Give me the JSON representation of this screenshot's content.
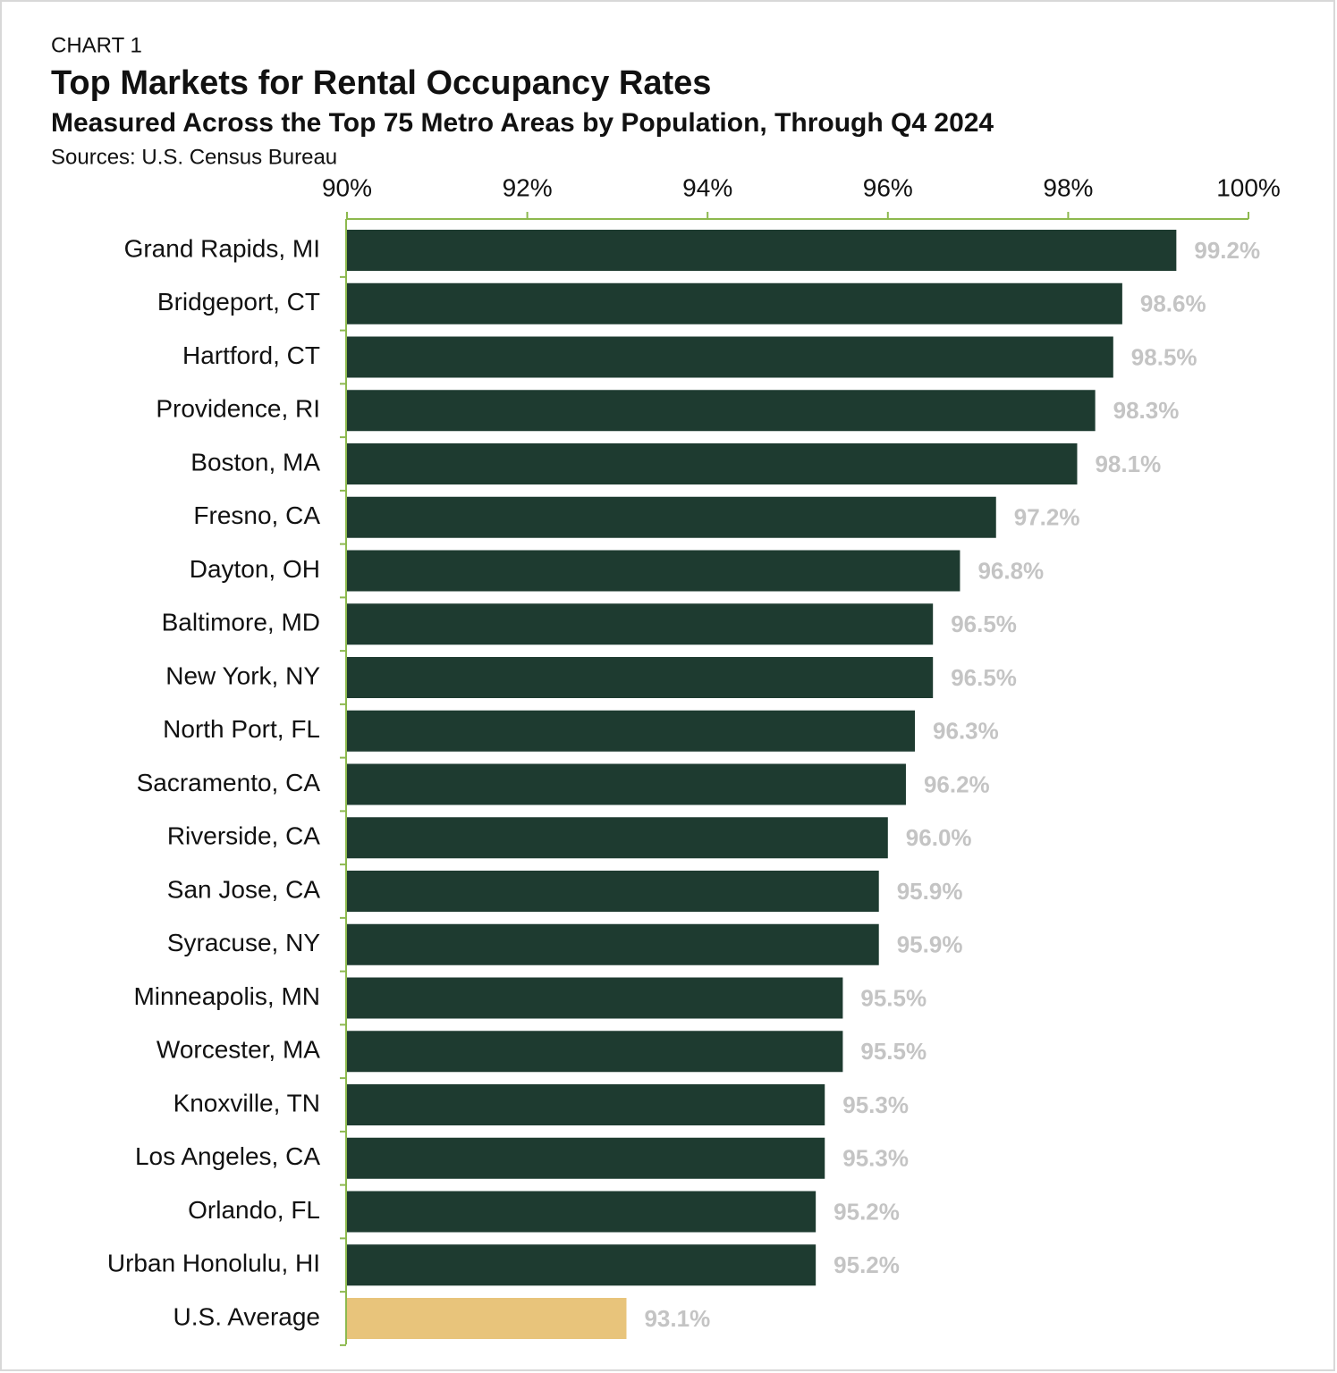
{
  "chart_data": {
    "type": "hbar",
    "chart_label": "CHART 1",
    "title": "Top Markets for Rental Occupancy Rates",
    "subtitle": "Measured Across the Top 75 Metro Areas by Population, Through Q4 2024",
    "source": "Sources: U.S. Census Bureau",
    "categories": [
      "Grand Rapids, MI",
      "Bridgeport, CT",
      "Hartford, CT",
      "Providence, RI",
      "Boston, MA",
      "Fresno, CA",
      "Dayton, OH",
      "Baltimore, MD",
      "New York, NY",
      "North Port, FL",
      "Sacramento, CA",
      "Riverside, CA",
      "San Jose, CA",
      "Syracuse, NY",
      "Minneapolis, MN",
      "Worcester, MA",
      "Knoxville, TN",
      "Los Angeles, CA",
      "Orlando, FL",
      "Urban Honolulu, HI",
      "U.S. Average"
    ],
    "values": [
      99.2,
      98.6,
      98.5,
      98.3,
      98.1,
      97.2,
      96.8,
      96.5,
      96.5,
      96.3,
      96.2,
      96.0,
      95.9,
      95.9,
      95.5,
      95.5,
      95.3,
      95.3,
      95.2,
      95.2,
      93.1
    ],
    "value_labels": [
      "99.2%",
      "98.6%",
      "98.5%",
      "98.3%",
      "98.1%",
      "97.2%",
      "96.8%",
      "96.5%",
      "96.5%",
      "96.3%",
      "96.2%",
      "96.0%",
      "95.9%",
      "95.9%",
      "95.5%",
      "95.5%",
      "95.3%",
      "95.3%",
      "95.2%",
      "95.2%",
      "93.1%"
    ],
    "colors": [
      "#1e3b30",
      "#1e3b30",
      "#1e3b30",
      "#1e3b30",
      "#1e3b30",
      "#1e3b30",
      "#1e3b30",
      "#1e3b30",
      "#1e3b30",
      "#1e3b30",
      "#1e3b30",
      "#1e3b30",
      "#1e3b30",
      "#1e3b30",
      "#1e3b30",
      "#1e3b30",
      "#1e3b30",
      "#1e3b30",
      "#1e3b30",
      "#1e3b30",
      "#e8c47b"
    ],
    "xlim": [
      90,
      100
    ],
    "xticks": [
      {
        "value": 90,
        "label": "90%"
      },
      {
        "value": 92,
        "label": "92%"
      },
      {
        "value": 94,
        "label": "94%"
      },
      {
        "value": 96,
        "label": "96%"
      },
      {
        "value": 98,
        "label": "98%"
      },
      {
        "value": 100,
        "label": "100%"
      }
    ]
  }
}
